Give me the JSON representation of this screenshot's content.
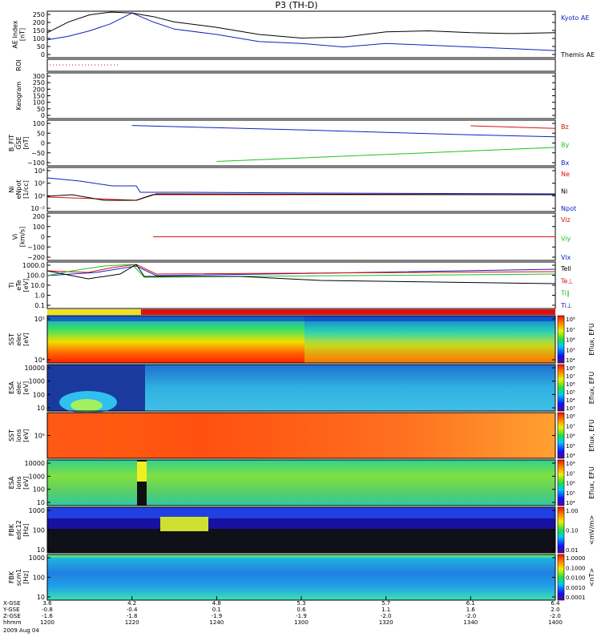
{
  "title": "P3 (TH-D)",
  "colors": {
    "kyoto": "#000000",
    "themis": "#1020c0",
    "red": "#d81010",
    "green": "#20c020",
    "blue": "#1020c0"
  },
  "panels": [
    {
      "id": "ae",
      "ylabel": [
        "AE Index",
        "[nT]"
      ],
      "ticks": [
        "250",
        "200",
        "150",
        "100",
        "50",
        "0"
      ],
      "legend": [
        {
          "text": "Kyoto AE",
          "color": "#1020c0"
        },
        {
          "text": "Themis AE",
          "color": "#000000"
        }
      ]
    },
    {
      "id": "roi",
      "ylabel": [
        "ROI"
      ],
      "ticks": [],
      "legend": []
    },
    {
      "id": "keogram",
      "ylabel": [
        "Keogram"
      ],
      "ticks": [
        "300",
        "250",
        "200",
        "150",
        "100",
        "50",
        "0"
      ],
      "legend": []
    },
    {
      "id": "bfit",
      "ylabel": [
        "B_FIT",
        "GSE",
        "[nT]"
      ],
      "ticks": [
        "100",
        "50",
        "0",
        "−50",
        "−100"
      ],
      "legend": [
        {
          "text": "Bz",
          "color": "#d81010"
        },
        {
          "text": "By",
          "color": "#20c020"
        },
        {
          "text": "Bx",
          "color": "#1020c0"
        }
      ]
    },
    {
      "id": "ni",
      "ylabel": [
        "Ni",
        "eNpot",
        "[1/cc]"
      ],
      "ticks": [
        "10⁴",
        "10²",
        "10⁰",
        "10⁻²"
      ],
      "legend": [
        {
          "text": "Ne",
          "color": "#d81010"
        },
        {
          "text": "Ni",
          "color": "#000000"
        },
        {
          "text": "Npot",
          "color": "#1020c0"
        }
      ]
    },
    {
      "id": "vi",
      "ylabel": [
        "Vi",
        "[km/s]"
      ],
      "ticks": [
        "200",
        "100",
        "0",
        "−100",
        "−200"
      ],
      "legend": [
        {
          "text": "Viz",
          "color": "#d81010"
        },
        {
          "text": "Viy",
          "color": "#20c020"
        },
        {
          "text": "Vix",
          "color": "#1020c0"
        }
      ]
    },
    {
      "id": "ti",
      "ylabel": [
        "Ti",
        "eTe",
        "[eV]"
      ],
      "ticks": [
        "1000.0",
        "100.0",
        "10.0",
        "1.0",
        "0.1"
      ],
      "legend": [
        {
          "text": "Tell",
          "color": "#000000"
        },
        {
          "text": "Te⊥",
          "color": "#d81010"
        },
        {
          "text": "Ti∥",
          "color": "#20c020"
        },
        {
          "text": "Ti⊥",
          "color": "#1020c0"
        }
      ]
    },
    {
      "id": "sst_e",
      "ylabel": [
        "SST",
        "elec",
        "[eV]"
      ],
      "ticks": [
        "10⁵",
        "10⁴"
      ],
      "legend": []
    },
    {
      "id": "esa_e",
      "ylabel": [
        "ESA",
        "elec",
        "[eV]"
      ],
      "ticks": [
        "10000",
        "1000",
        "100",
        "10"
      ],
      "legend": []
    },
    {
      "id": "sst_i",
      "ylabel": [
        "SST",
        "ions",
        "[eV]"
      ],
      "ticks": [
        "10⁵"
      ],
      "legend": []
    },
    {
      "id": "esa_i",
      "ylabel": [
        "ESA",
        "ions",
        "[eV]"
      ],
      "ticks": [
        "10000",
        "1000",
        "100",
        "10"
      ],
      "legend": []
    },
    {
      "id": "fbk_e",
      "ylabel": [
        "FBK",
        "edc12",
        "[Hz]"
      ],
      "ticks": [
        "1000",
        "100",
        "10"
      ],
      "legend": []
    },
    {
      "id": "fbk_b",
      "ylabel": [
        "FBK",
        "scm1",
        "[Hz]"
      ],
      "ticks": [
        "1000",
        "100",
        "10"
      ],
      "legend": []
    }
  ],
  "colorbars": [
    {
      "label": "Eflux, EFU",
      "ticks": [
        "10⁸",
        "10⁷",
        "10⁶",
        "10⁵",
        "10⁴"
      ]
    },
    {
      "label": "Eflux, EFU",
      "ticks": [
        "10⁸",
        "10⁷",
        "10⁶",
        "10⁵",
        "10⁴",
        "10³"
      ]
    },
    {
      "label": "Eflux, EFU",
      "ticks": [
        "10⁸",
        "10⁷",
        "10⁶",
        "10⁵",
        "10⁴"
      ]
    },
    {
      "label": "Eflux, EFU",
      "ticks": [
        "10⁸",
        "10⁷",
        "10⁶",
        "10⁵",
        "10⁴"
      ]
    },
    {
      "label": "<mV/m>",
      "ticks": [
        "1.00",
        "0.10",
        "0.01"
      ]
    },
    {
      "label": "<nT>",
      "ticks": [
        "1.0000",
        "0.1000",
        "0.0100",
        "0.0010",
        "0.0001"
      ]
    }
  ],
  "axis": {
    "row_labels": [
      "X-GSE",
      "Y-GSE",
      "Z-GSE",
      "hhmm",
      "2009 Aug 04"
    ],
    "columns": [
      [
        "3.6",
        "-0.8",
        "-1.6",
        "1200"
      ],
      [
        "4.2",
        "-0.4",
        "-1.8",
        "1220"
      ],
      [
        "4.8",
        "0.1",
        "-1.9",
        "1240"
      ],
      [
        "5.3",
        "0.6",
        "-1.9",
        "1300"
      ],
      [
        "5.7",
        "1.1",
        "-2.0",
        "1320"
      ],
      [
        "6.1",
        "1.6",
        "-2.0",
        "1340"
      ],
      [
        "6.4",
        "2.0",
        "-2.0",
        "1400"
      ]
    ]
  },
  "chart_data": [
    {
      "type": "line",
      "title": "AE Index",
      "ylabel": "AE Index [nT]",
      "x_label": "hhmm",
      "ylim": [
        0,
        260
      ],
      "x": [
        1200,
        1205,
        1210,
        1215,
        1220,
        1225,
        1230,
        1240,
        1250,
        1300,
        1310,
        1320,
        1330,
        1340,
        1350,
        1400
      ],
      "series": [
        {
          "name": "Kyoto AE",
          "values": [
            100,
            120,
            150,
            190,
            250,
            200,
            160,
            130,
            90,
            80,
            60,
            80,
            70,
            60,
            50,
            40
          ]
        },
        {
          "name": "Themis AE",
          "values": [
            140,
            200,
            240,
            255,
            250,
            230,
            200,
            170,
            130,
            110,
            115,
            145,
            150,
            140,
            135,
            140
          ]
        }
      ]
    },
    {
      "type": "line",
      "title": "B_FIT GSE",
      "ylabel": "B_FIT GSE [nT]",
      "ylim": [
        -130,
        130
      ],
      "x": [
        1200,
        1220,
        1240,
        1300,
        1320,
        1340,
        1400
      ],
      "series": [
        {
          "name": "Bz",
          "values": [
            null,
            null,
            null,
            null,
            null,
            98,
            83
          ]
        },
        {
          "name": "By",
          "values": [
            null,
            null,
            -105,
            -85,
            -65,
            -45,
            -25
          ]
        },
        {
          "name": "Bx",
          "values": [
            null,
            100,
            87,
            75,
            60,
            47,
            35
          ]
        }
      ]
    },
    {
      "type": "line",
      "title": "Vi",
      "ylabel": "Vi [km/s]",
      "ylim": [
        -250,
        250
      ],
      "x": [
        1200,
        1225,
        1240,
        1300,
        1320,
        1340,
        1400
      ],
      "series": [
        {
          "name": "Vix",
          "values": [
            null,
            0,
            0,
            0,
            0,
            0,
            0
          ]
        },
        {
          "name": "Viy",
          "values": [
            null,
            0,
            0,
            0,
            0,
            0,
            0
          ]
        },
        {
          "name": "Viz",
          "values": [
            null,
            0,
            0,
            0,
            0,
            0,
            0
          ]
        }
      ]
    }
  ]
}
